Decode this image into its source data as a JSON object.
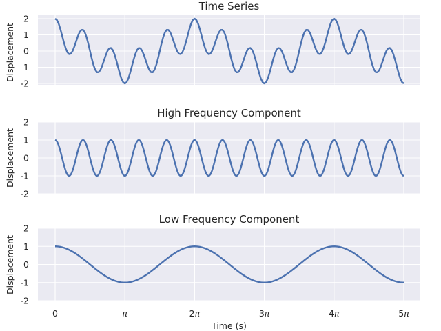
{
  "chart_data": [
    {
      "type": "line",
      "title": "Time Series",
      "ylabel": "Displacement",
      "xlabel": "",
      "x_range": [
        0,
        15.70796
      ],
      "x_samples": 201,
      "ylim": [
        -2.15,
        2.15
      ],
      "yticks": [
        2,
        1,
        0,
        -1,
        -2
      ],
      "ytick_labels": [
        "2",
        "1",
        "0",
        "-1",
        "-2"
      ],
      "grid": true,
      "series": [
        {
          "formula": "cos(5x) + cos(x)",
          "color": "#4c72b0"
        }
      ]
    },
    {
      "type": "line",
      "title": "High Frequency Component",
      "ylabel": "Displacement",
      "xlabel": "",
      "x_range": [
        0,
        15.70796
      ],
      "x_samples": 401,
      "ylim": [
        -2,
        2
      ],
      "yticks": [
        2,
        1,
        0,
        -1,
        -2
      ],
      "ytick_labels": [
        "2",
        "1",
        "0",
        "-1",
        "-2"
      ],
      "grid": true,
      "series": [
        {
          "formula": "cos(5x)",
          "color": "#4c72b0"
        }
      ]
    },
    {
      "type": "line",
      "title": "Low Frequency Component",
      "ylabel": "Displacement",
      "xlabel": "Time (s)",
      "x_range": [
        0,
        15.70796
      ],
      "x_samples": 201,
      "ylim": [
        -2,
        2
      ],
      "yticks": [
        2,
        1,
        0,
        -1,
        -2
      ],
      "ytick_labels": [
        "2",
        "1",
        "0",
        "-1",
        "-2"
      ],
      "xticks": [
        0,
        3.14159,
        6.28319,
        9.42478,
        12.56637,
        15.70796
      ],
      "xtick_labels": [
        "0",
        "π",
        "2π",
        "3π",
        "4π",
        "5π"
      ],
      "grid": true,
      "series": [
        {
          "formula": "cos(x)",
          "color": "#4c72b0"
        }
      ]
    }
  ]
}
